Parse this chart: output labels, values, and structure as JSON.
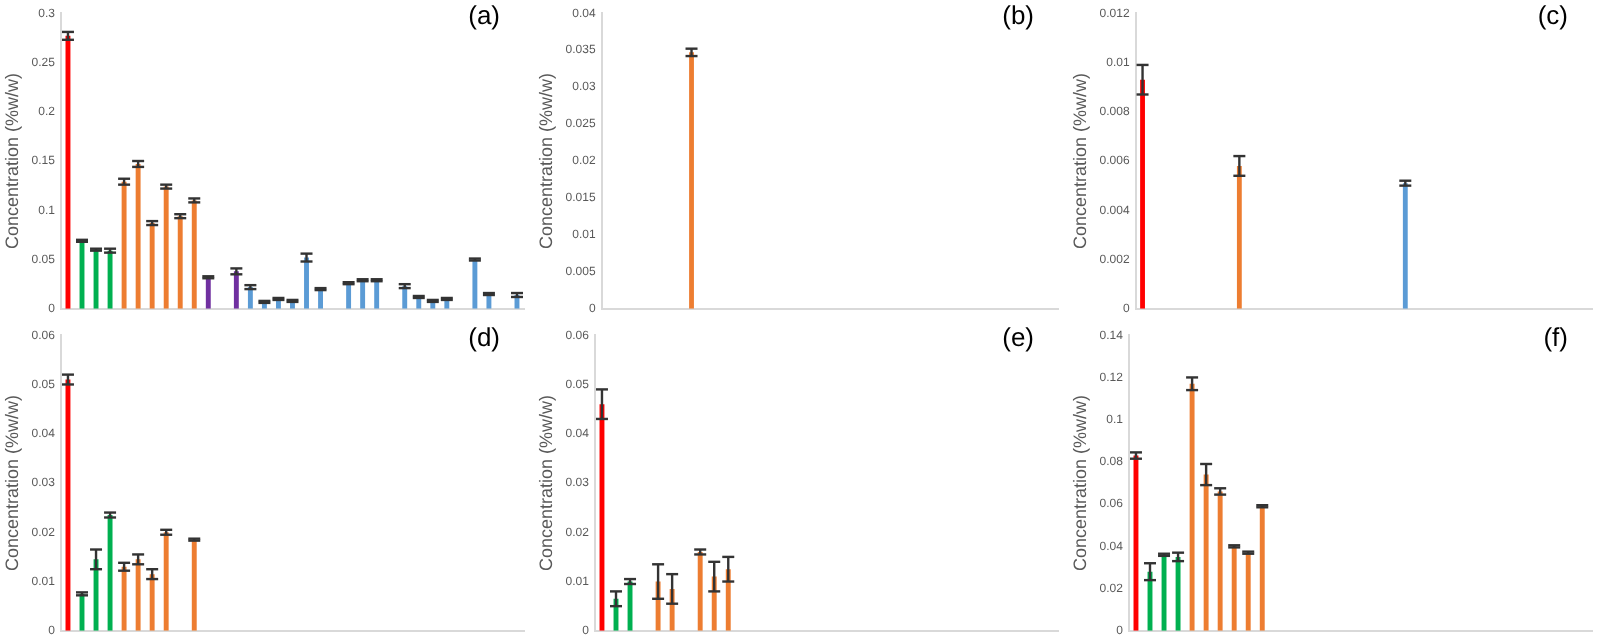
{
  "chart_data": [
    {
      "type": "bar",
      "title": "(a)",
      "ylabel": "Concentration (%w/w)",
      "categories": [
        null,
        null,
        null,
        null,
        null,
        null,
        null,
        null,
        null,
        null,
        null,
        null,
        null,
        null,
        null,
        null,
        null,
        null,
        null,
        null,
        null,
        null,
        null,
        null,
        null,
        null,
        null,
        null,
        null,
        null,
        null,
        null,
        null
      ],
      "values": [
        0.277,
        0.069,
        0.06,
        0.059,
        0.129,
        0.147,
        0.087,
        0.124,
        0.094,
        0.11,
        0.032,
        null,
        0.038,
        0.022,
        0.007,
        0.01,
        0.008,
        0.052,
        0.02,
        null,
        0.026,
        0.029,
        0.029,
        null,
        0.023,
        0.012,
        0.008,
        0.01,
        null,
        0.05,
        0.015,
        null,
        0.014
      ],
      "errors": [
        0.004,
        0.001,
        0.001,
        0.002,
        0.003,
        0.003,
        0.002,
        0.002,
        0.002,
        0.002,
        0.001,
        null,
        0.003,
        0.002,
        0.001,
        0.001,
        0.001,
        0.004,
        0.001,
        null,
        0.001,
        0.001,
        0.001,
        null,
        0.002,
        0.001,
        0.001,
        0.001,
        null,
        0.001,
        0.001,
        null,
        0.002
      ],
      "colors": [
        "#ff0000",
        "#00b050",
        "#00b050",
        "#00b050",
        "#ed7d31",
        "#ed7d31",
        "#ed7d31",
        "#ed7d31",
        "#ed7d31",
        "#ed7d31",
        "#7030a0",
        "#7030a0",
        "#7030a0",
        "#5b9bd5",
        "#5b9bd5",
        "#5b9bd5",
        "#5b9bd5",
        "#5b9bd5",
        "#5b9bd5",
        "#5b9bd5",
        "#5b9bd5",
        "#5b9bd5",
        "#5b9bd5",
        "#5b9bd5",
        "#5b9bd5",
        "#5b9bd5",
        "#5b9bd5",
        "#5b9bd5",
        "#5b9bd5",
        "#5b9bd5",
        "#5b9bd5",
        "#5b9bd5",
        "#5b9bd5"
      ],
      "ylim": [
        0,
        0.3
      ],
      "yticks": [
        0,
        0.05,
        0.1,
        0.15,
        0.2,
        0.25,
        0.3
      ],
      "grid": false,
      "legend": false
    },
    {
      "type": "bar",
      "title": "(b)",
      "ylabel": "Concentration (%w/w)",
      "categories": [
        null,
        null,
        null,
        null,
        null,
        null,
        null,
        null,
        null,
        null,
        null,
        null,
        null,
        null,
        null,
        null,
        null,
        null,
        null,
        null,
        null,
        null,
        null,
        null,
        null,
        null,
        null,
        null,
        null,
        null,
        null,
        null,
        null
      ],
      "values": [
        null,
        null,
        null,
        null,
        null,
        null,
        0.0347,
        null,
        null,
        null,
        null,
        null,
        null,
        null,
        null,
        null,
        null,
        null,
        null,
        null,
        null,
        null,
        null,
        null,
        null,
        null,
        null,
        null,
        null,
        null,
        null,
        null,
        null
      ],
      "errors": [
        null,
        null,
        null,
        null,
        null,
        null,
        0.0005,
        null,
        null,
        null,
        null,
        null,
        null,
        null,
        null,
        null,
        null,
        null,
        null,
        null,
        null,
        null,
        null,
        null,
        null,
        null,
        null,
        null,
        null,
        null,
        null,
        null,
        null
      ],
      "colors": [
        "#ed7d31",
        "#ed7d31",
        "#ed7d31",
        "#ed7d31",
        "#ed7d31",
        "#ed7d31",
        "#ed7d31",
        "#ed7d31",
        "#ed7d31",
        "#ed7d31",
        "#ed7d31",
        "#ed7d31",
        "#ed7d31",
        "#ed7d31",
        "#ed7d31",
        "#ed7d31",
        "#ed7d31",
        "#ed7d31",
        "#ed7d31",
        "#ed7d31",
        "#ed7d31",
        "#ed7d31",
        "#ed7d31",
        "#ed7d31",
        "#ed7d31",
        "#ed7d31",
        "#ed7d31",
        "#ed7d31",
        "#ed7d31",
        "#ed7d31",
        "#ed7d31",
        "#ed7d31",
        "#ed7d31"
      ],
      "ylim": [
        0,
        0.04
      ],
      "yticks": [
        0,
        0.005,
        0.01,
        0.015,
        0.02,
        0.025,
        0.03,
        0.035,
        0.04
      ],
      "grid": false,
      "legend": false
    },
    {
      "type": "bar",
      "title": "(c)",
      "ylabel": "Concentration (%w/w)",
      "categories": [
        null,
        null,
        null,
        null,
        null,
        null,
        null,
        null,
        null,
        null,
        null,
        null,
        null,
        null,
        null,
        null,
        null,
        null,
        null,
        null,
        null,
        null,
        null,
        null,
        null,
        null,
        null,
        null,
        null,
        null,
        null,
        null,
        null
      ],
      "values": [
        0.0093,
        null,
        null,
        null,
        null,
        null,
        null,
        0.0058,
        null,
        null,
        null,
        null,
        null,
        null,
        null,
        null,
        null,
        null,
        null,
        0.0051,
        null,
        null,
        null,
        null,
        null,
        null,
        null,
        null,
        null,
        null,
        null,
        null,
        null
      ],
      "errors": [
        0.0006,
        null,
        null,
        null,
        null,
        null,
        null,
        0.0004,
        null,
        null,
        null,
        null,
        null,
        null,
        null,
        null,
        null,
        null,
        null,
        0.0001,
        null,
        null,
        null,
        null,
        null,
        null,
        null,
        null,
        null,
        null,
        null,
        null,
        null
      ],
      "colors": [
        "#ff0000",
        "#ed7d31",
        "#ed7d31",
        "#ed7d31",
        "#ed7d31",
        "#ed7d31",
        "#ed7d31",
        "#ed7d31",
        "#5b9bd5",
        "#5b9bd5",
        "#5b9bd5",
        "#5b9bd5",
        "#5b9bd5",
        "#5b9bd5",
        "#5b9bd5",
        "#5b9bd5",
        "#5b9bd5",
        "#5b9bd5",
        "#5b9bd5",
        "#5b9bd5",
        "#5b9bd5",
        "#5b9bd5",
        "#5b9bd5",
        "#5b9bd5",
        "#5b9bd5",
        "#5b9bd5",
        "#5b9bd5",
        "#5b9bd5",
        "#5b9bd5",
        "#5b9bd5",
        "#5b9bd5",
        "#5b9bd5",
        "#5b9bd5"
      ],
      "ylim": [
        0,
        0.012
      ],
      "yticks": [
        0,
        0.002,
        0.004,
        0.006,
        0.008,
        0.01,
        0.012
      ],
      "grid": false,
      "legend": false
    },
    {
      "type": "bar",
      "title": "(d)",
      "ylabel": "Concentration (%w/w)",
      "categories": [
        null,
        null,
        null,
        null,
        null,
        null,
        null,
        null,
        null,
        null,
        null,
        null,
        null,
        null,
        null,
        null,
        null,
        null,
        null,
        null,
        null,
        null,
        null,
        null,
        null,
        null,
        null,
        null,
        null,
        null,
        null,
        null,
        null
      ],
      "values": [
        0.051,
        0.0075,
        0.0145,
        0.0235,
        0.013,
        0.0145,
        0.0115,
        0.02,
        null,
        0.0185,
        null,
        null,
        null,
        null,
        null,
        null,
        null,
        null,
        null,
        null,
        null,
        null,
        null,
        null,
        null,
        null,
        null,
        null,
        null,
        null,
        null,
        null,
        null
      ],
      "errors": [
        0.001,
        0.0003,
        0.002,
        0.0005,
        0.0008,
        0.001,
        0.001,
        0.0005,
        null,
        0.0002,
        null,
        null,
        null,
        null,
        null,
        null,
        null,
        null,
        null,
        null,
        null,
        null,
        null,
        null,
        null,
        null,
        null,
        null,
        null,
        null,
        null,
        null,
        null
      ],
      "colors": [
        "#ff0000",
        "#00b050",
        "#00b050",
        "#00b050",
        "#ed7d31",
        "#ed7d31",
        "#ed7d31",
        "#ed7d31",
        "#ed7d31",
        "#ed7d31",
        "#ed7d31",
        "#ed7d31",
        "#ed7d31",
        "#ed7d31",
        "#ed7d31",
        "#ed7d31",
        "#ed7d31",
        "#ed7d31",
        "#ed7d31",
        "#ed7d31",
        "#ed7d31",
        "#ed7d31",
        "#ed7d31",
        "#ed7d31",
        "#ed7d31",
        "#ed7d31",
        "#ed7d31",
        "#ed7d31",
        "#ed7d31",
        "#ed7d31",
        "#ed7d31",
        "#ed7d31",
        "#ed7d31"
      ],
      "ylim": [
        0,
        0.06
      ],
      "yticks": [
        0,
        0.01,
        0.02,
        0.03,
        0.04,
        0.05,
        0.06
      ],
      "grid": false,
      "legend": false
    },
    {
      "type": "bar",
      "title": "(e)",
      "ylabel": "Concentration (%w/w)",
      "categories": [
        null,
        null,
        null,
        null,
        null,
        null,
        null,
        null,
        null,
        null,
        null,
        null,
        null,
        null,
        null,
        null,
        null,
        null,
        null,
        null,
        null,
        null,
        null,
        null,
        null,
        null,
        null,
        null,
        null,
        null,
        null,
        null,
        null
      ],
      "values": [
        0.046,
        0.0065,
        0.01,
        null,
        0.01,
        0.0085,
        null,
        0.016,
        0.011,
        0.0125,
        null,
        null,
        null,
        null,
        null,
        null,
        null,
        null,
        null,
        null,
        null,
        null,
        null,
        null,
        null,
        null,
        null,
        null,
        null,
        null,
        null,
        null,
        null
      ],
      "errors": [
        0.003,
        0.0015,
        0.0005,
        null,
        0.0035,
        0.003,
        null,
        0.0005,
        0.003,
        0.0025,
        null,
        null,
        null,
        null,
        null,
        null,
        null,
        null,
        null,
        null,
        null,
        null,
        null,
        null,
        null,
        null,
        null,
        null,
        null,
        null,
        null,
        null,
        null
      ],
      "colors": [
        "#ff0000",
        "#00b050",
        "#00b050",
        "#00b050",
        "#ed7d31",
        "#ed7d31",
        "#ed7d31",
        "#ed7d31",
        "#ed7d31",
        "#ed7d31",
        "#ed7d31",
        "#ed7d31",
        "#ed7d31",
        "#ed7d31",
        "#ed7d31",
        "#ed7d31",
        "#ed7d31",
        "#ed7d31",
        "#ed7d31",
        "#ed7d31",
        "#ed7d31",
        "#ed7d31",
        "#ed7d31",
        "#ed7d31",
        "#ed7d31",
        "#ed7d31",
        "#ed7d31",
        "#ed7d31",
        "#ed7d31",
        "#ed7d31",
        "#ed7d31",
        "#ed7d31",
        "#ed7d31"
      ],
      "ylim": [
        0,
        0.06
      ],
      "yticks": [
        0,
        0.01,
        0.02,
        0.03,
        0.04,
        0.05,
        0.06
      ],
      "grid": false,
      "legend": false
    },
    {
      "type": "bar",
      "title": "(f)",
      "ylabel": "Concentration (%w/w)",
      "categories": [
        null,
        null,
        null,
        null,
        null,
        null,
        null,
        null,
        null,
        null,
        null,
        null,
        null,
        null,
        null,
        null,
        null,
        null,
        null,
        null,
        null,
        null,
        null,
        null,
        null,
        null,
        null,
        null,
        null,
        null,
        null,
        null,
        null
      ],
      "values": [
        0.083,
        0.028,
        0.036,
        0.035,
        0.117,
        0.074,
        0.066,
        0.04,
        0.037,
        0.059,
        null,
        null,
        null,
        null,
        null,
        null,
        null,
        null,
        null,
        null,
        null,
        null,
        null,
        null,
        null,
        null,
        null,
        null,
        null,
        null,
        null,
        null,
        null
      ],
      "errors": [
        0.0015,
        0.004,
        0.0005,
        0.002,
        0.003,
        0.005,
        0.0015,
        0.0005,
        0.0005,
        0.0005,
        null,
        null,
        null,
        null,
        null,
        null,
        null,
        null,
        null,
        null,
        null,
        null,
        null,
        null,
        null,
        null,
        null,
        null,
        null,
        null,
        null,
        null,
        null
      ],
      "colors": [
        "#ff0000",
        "#00b050",
        "#00b050",
        "#00b050",
        "#ed7d31",
        "#ed7d31",
        "#ed7d31",
        "#ed7d31",
        "#ed7d31",
        "#ed7d31",
        "#ed7d31",
        "#ed7d31",
        "#ed7d31",
        "#ed7d31",
        "#ed7d31",
        "#ed7d31",
        "#ed7d31",
        "#ed7d31",
        "#ed7d31",
        "#ed7d31",
        "#ed7d31",
        "#ed7d31",
        "#ed7d31",
        "#ed7d31",
        "#ed7d31",
        "#ed7d31",
        "#ed7d31",
        "#ed7d31",
        "#ed7d31",
        "#ed7d31",
        "#ed7d31",
        "#ed7d31",
        "#ed7d31"
      ],
      "ylim": [
        0,
        0.14
      ],
      "yticks": [
        0,
        0.02,
        0.04,
        0.06,
        0.08,
        0.1,
        0.12,
        0.14
      ],
      "grid": false,
      "legend": false
    }
  ]
}
